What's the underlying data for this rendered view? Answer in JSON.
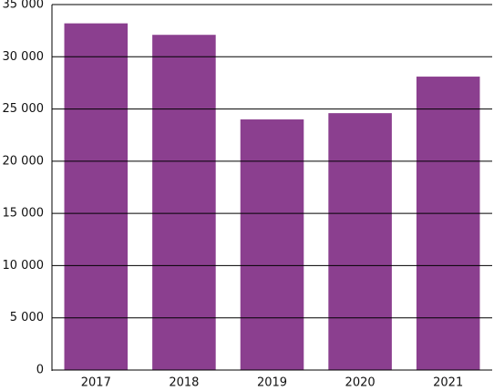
{
  "chart_data": {
    "type": "bar",
    "categories": [
      "2017",
      "2018",
      "2019",
      "2020",
      "2021"
    ],
    "values": [
      33200,
      32100,
      24000,
      24600,
      28100
    ],
    "color": "#8b3f8f",
    "ylim": [
      0,
      35000
    ],
    "yticks": [
      0,
      {
        "value": 5000,
        "label": "5 000"
      },
      {
        "value": 10000,
        "label": "10 000"
      },
      {
        "value": 15000,
        "label": "15 000"
      },
      {
        "value": 20000,
        "label": "20 000"
      },
      {
        "value": 25000,
        "label": "25 000"
      },
      {
        "value": 30000,
        "label": "30 000"
      },
      {
        "value": 35000,
        "label": "35 000"
      }
    ],
    "grid": true
  }
}
